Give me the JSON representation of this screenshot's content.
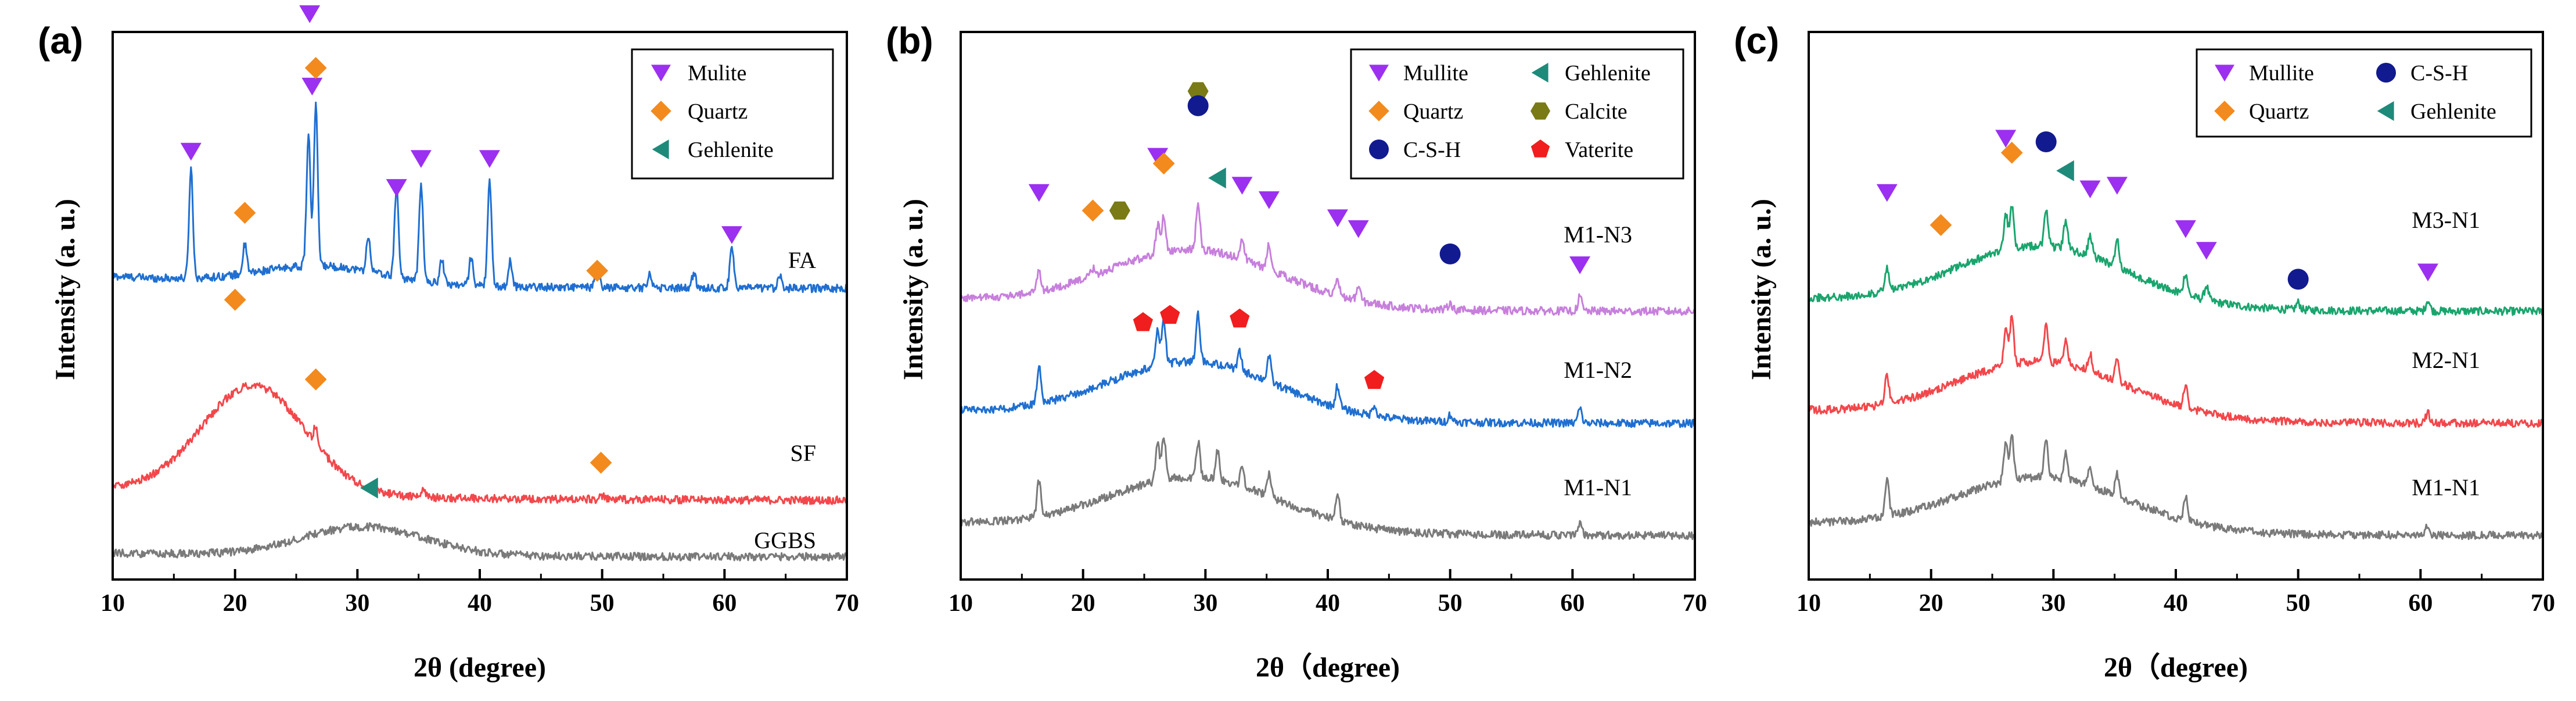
{
  "figure": {
    "colors": {
      "Mulite": "#9b30f0",
      "Mullite": "#9b30f0",
      "Quartz": "#f28a1e",
      "Gehlenite": "#1e8a7a",
      "Calcite": "#7a7a16",
      "C-S-H": "#121a8f",
      "Vaterite": "#f01e1e",
      "blue": "#1f6fd1",
      "red": "#f2474b",
      "gray": "#7a7a7a",
      "purple": "#c77fdc",
      "green": "#19a56d"
    },
    "shapes": {
      "Mulite": "triangle-down",
      "Mullite": "triangle-down",
      "Quartz": "diamond",
      "Gehlenite": "triangle-left",
      "Calcite": "hexagon",
      "C-S-H": "circle",
      "Vaterite": "pentagon"
    }
  },
  "chart_data": [
    {
      "panel": "(a)",
      "type": "line",
      "xlabel": "2θ (degree)",
      "ylabel": "Intensity (a. u.)",
      "xlim": [
        10,
        70
      ],
      "xticks": [
        10,
        20,
        30,
        40,
        50,
        60,
        70
      ],
      "legend": [
        "Mulite",
        "Quartz",
        "Gehlenite"
      ],
      "legend_position": "top-right",
      "series": [
        {
          "name": "FA",
          "color": "blue",
          "baseline": 0.74,
          "hump": {
            "center": 27,
            "width": 5,
            "height": 0.05
          },
          "peaks": [
            [
              16.4,
              0.3
            ],
            [
              20.8,
              0.08
            ],
            [
              26.0,
              0.36
            ],
            [
              26.6,
              0.44
            ],
            [
              30.9,
              0.1
            ],
            [
              33.2,
              0.25
            ],
            [
              35.2,
              0.27
            ],
            [
              36.9,
              0.07
            ],
            [
              39.3,
              0.08
            ],
            [
              40.8,
              0.29
            ],
            [
              42.5,
              0.07
            ],
            [
              49.6,
              0.06
            ],
            [
              53.9,
              0.04
            ],
            [
              57.5,
              0.04
            ],
            [
              60.6,
              0.12
            ],
            [
              64.5,
              0.04
            ]
          ]
        },
        {
          "name": "SF",
          "color": "red",
          "baseline": 0.155,
          "hump": {
            "center": 21.5,
            "width": 4.2,
            "height": 0.3
          },
          "peaks": [
            [
              26.6,
              0.05
            ],
            [
              35.4,
              0.02
            ],
            [
              50.0,
              0.01
            ]
          ]
        },
        {
          "name": "GGBS",
          "color": "gray",
          "baseline": 0.0,
          "hump": {
            "center": 30.5,
            "width": 5,
            "height": 0.08
          },
          "peaks": []
        }
      ],
      "markers": [
        {
          "phase": "Mulite",
          "x": 16.4,
          "y": 1.12
        },
        {
          "phase": "Mulite",
          "x": 26.1,
          "y": 1.5
        },
        {
          "phase": "Mulite",
          "x": 26.3,
          "y": 1.3
        },
        {
          "phase": "Mulite",
          "x": 33.2,
          "y": 1.02
        },
        {
          "phase": "Mulite",
          "x": 35.2,
          "y": 1.1
        },
        {
          "phase": "Mulite",
          "x": 40.8,
          "y": 1.1
        },
        {
          "phase": "Mulite",
          "x": 60.6,
          "y": 0.89
        },
        {
          "phase": "Quartz",
          "x": 20.8,
          "y": 0.95
        },
        {
          "phase": "Quartz",
          "x": 26.6,
          "y": 1.35
        },
        {
          "phase": "Quartz",
          "x": 49.6,
          "y": 0.79
        },
        {
          "phase": "Quartz",
          "x": 20.0,
          "y": 0.71
        },
        {
          "phase": "Quartz",
          "x": 26.6,
          "y": 0.49
        },
        {
          "phase": "Quartz",
          "x": 49.9,
          "y": 0.26
        },
        {
          "phase": "Gehlenite",
          "x": 31.0,
          "y": 0.19
        }
      ]
    },
    {
      "panel": "(b)",
      "type": "line",
      "xlabel": "2θ（degree)",
      "ylabel": "Intensity (a. u.)",
      "xlim": [
        10,
        70
      ],
      "xticks": [
        10,
        20,
        30,
        40,
        50,
        60,
        70
      ],
      "legend": [
        "Mullite",
        "Gehlenite",
        "Quartz",
        "Calcite",
        "C-S-H",
        "Vaterite"
      ],
      "legend_position": "top-right",
      "series": [
        {
          "name": "M1-N3",
          "color": "purple",
          "baseline": 0.62,
          "hump": {
            "center": 29,
            "width": 7,
            "height": 0.16
          },
          "peaks": [
            [
              16.4,
              0.06
            ],
            [
              20.8,
              0.02
            ],
            [
              26.1,
              0.08
            ],
            [
              26.6,
              0.1
            ],
            [
              29.4,
              0.13
            ],
            [
              33.0,
              0.06
            ],
            [
              35.2,
              0.07
            ],
            [
              40.8,
              0.04
            ],
            [
              42.5,
              0.04
            ],
            [
              50.0,
              0.02
            ],
            [
              60.6,
              0.04
            ]
          ]
        },
        {
          "name": "M1-N2",
          "color": "blue",
          "baseline": 0.31,
          "hump": {
            "center": 29,
            "width": 7,
            "height": 0.16
          },
          "peaks": [
            [
              16.4,
              0.1
            ],
            [
              26.1,
              0.1
            ],
            [
              26.6,
              0.12
            ],
            [
              29.4,
              0.13
            ],
            [
              32.8,
              0.05
            ],
            [
              35.2,
              0.07
            ],
            [
              40.8,
              0.06
            ],
            [
              43.8,
              0.03
            ],
            [
              50.0,
              0.02
            ],
            [
              60.6,
              0.04
            ]
          ]
        },
        {
          "name": "M1-N1",
          "color": "gray",
          "baseline": 0.0,
          "hump": {
            "center": 29,
            "width": 7,
            "height": 0.15
          },
          "peaks": [
            [
              16.4,
              0.1
            ],
            [
              26.1,
              0.1
            ],
            [
              26.6,
              0.12
            ],
            [
              29.4,
              0.1
            ],
            [
              31.0,
              0.08
            ],
            [
              33.0,
              0.05
            ],
            [
              35.2,
              0.06
            ],
            [
              40.8,
              0.07
            ],
            [
              60.6,
              0.03
            ]
          ]
        }
      ],
      "markers": [
        {
          "phase": "Mullite",
          "x": 16.4,
          "y": 0.95
        },
        {
          "phase": "Mullite",
          "x": 26.1,
          "y": 1.05
        },
        {
          "phase": "Mullite",
          "x": 33.0,
          "y": 0.97
        },
        {
          "phase": "Mullite",
          "x": 35.2,
          "y": 0.93
        },
        {
          "phase": "Mullite",
          "x": 40.8,
          "y": 0.88
        },
        {
          "phase": "Mullite",
          "x": 42.5,
          "y": 0.85
        },
        {
          "phase": "Mullite",
          "x": 60.6,
          "y": 0.75
        },
        {
          "phase": "Quartz",
          "x": 20.8,
          "y": 0.9
        },
        {
          "phase": "Quartz",
          "x": 26.6,
          "y": 1.03
        },
        {
          "phase": "Calcite",
          "x": 23.0,
          "y": 0.9
        },
        {
          "phase": "Calcite",
          "x": 29.4,
          "y": 1.23
        },
        {
          "phase": "C-S-H",
          "x": 29.4,
          "y": 1.19
        },
        {
          "phase": "C-S-H",
          "x": 50.0,
          "y": 0.78
        },
        {
          "phase": "Gehlenite",
          "x": 31.0,
          "y": 0.99
        },
        {
          "phase": "Vaterite",
          "x": 24.9,
          "y": 0.59
        },
        {
          "phase": "Vaterite",
          "x": 27.1,
          "y": 0.61
        },
        {
          "phase": "Vaterite",
          "x": 32.8,
          "y": 0.6
        },
        {
          "phase": "Vaterite",
          "x": 43.8,
          "y": 0.43
        }
      ]
    },
    {
      "panel": "(c)",
      "type": "line",
      "xlabel": "2θ（degree)",
      "ylabel": "Intensity (a. u.)",
      "xlim": [
        10,
        70
      ],
      "xticks": [
        10,
        20,
        30,
        40,
        50,
        60,
        70
      ],
      "legend": [
        "Mullite",
        "C-S-H",
        "Quartz",
        "Gehlenite"
      ],
      "legend_position": "top-right",
      "series": [
        {
          "name": "M3-N1",
          "color": "green",
          "baseline": 0.62,
          "hump": {
            "center": 29,
            "width": 7,
            "height": 0.17
          },
          "peaks": [
            [
              16.4,
              0.06
            ],
            [
              26.1,
              0.1
            ],
            [
              26.6,
              0.12
            ],
            [
              29.4,
              0.1
            ],
            [
              31.0,
              0.08
            ],
            [
              33.0,
              0.06
            ],
            [
              35.2,
              0.08
            ],
            [
              40.8,
              0.06
            ],
            [
              42.5,
              0.04
            ],
            [
              50.0,
              0.02
            ],
            [
              60.6,
              0.03
            ]
          ]
        },
        {
          "name": "M2-N1",
          "color": "red",
          "baseline": 0.31,
          "hump": {
            "center": 29,
            "width": 7,
            "height": 0.16
          },
          "peaks": [
            [
              16.4,
              0.08
            ],
            [
              26.1,
              0.1
            ],
            [
              26.6,
              0.13
            ],
            [
              29.4,
              0.1
            ],
            [
              31.0,
              0.07
            ],
            [
              33.0,
              0.05
            ],
            [
              35.2,
              0.07
            ],
            [
              40.8,
              0.06
            ],
            [
              60.6,
              0.03
            ]
          ]
        },
        {
          "name": "M1-N1",
          "color": "gray",
          "baseline": 0.0,
          "hump": {
            "center": 29,
            "width": 7,
            "height": 0.15
          },
          "peaks": [
            [
              16.4,
              0.1
            ],
            [
              26.1,
              0.1
            ],
            [
              26.6,
              0.12
            ],
            [
              29.4,
              0.1
            ],
            [
              31.0,
              0.08
            ],
            [
              33.0,
              0.05
            ],
            [
              35.2,
              0.06
            ],
            [
              40.8,
              0.07
            ],
            [
              60.6,
              0.03
            ]
          ]
        }
      ],
      "markers": [
        {
          "phase": "Mullite",
          "x": 16.4,
          "y": 0.95
        },
        {
          "phase": "Mullite",
          "x": 26.1,
          "y": 1.1
        },
        {
          "phase": "Mullite",
          "x": 33.0,
          "y": 0.96
        },
        {
          "phase": "Mullite",
          "x": 35.2,
          "y": 0.97
        },
        {
          "phase": "Mullite",
          "x": 40.8,
          "y": 0.85
        },
        {
          "phase": "Mullite",
          "x": 42.5,
          "y": 0.79
        },
        {
          "phase": "Mullite",
          "x": 60.6,
          "y": 0.73
        },
        {
          "phase": "Quartz",
          "x": 20.8,
          "y": 0.86
        },
        {
          "phase": "Quartz",
          "x": 26.6,
          "y": 1.06
        },
        {
          "phase": "C-S-H",
          "x": 29.4,
          "y": 1.09
        },
        {
          "phase": "C-S-H",
          "x": 50.0,
          "y": 0.71
        },
        {
          "phase": "Gehlenite",
          "x": 31.0,
          "y": 1.01
        }
      ]
    }
  ]
}
